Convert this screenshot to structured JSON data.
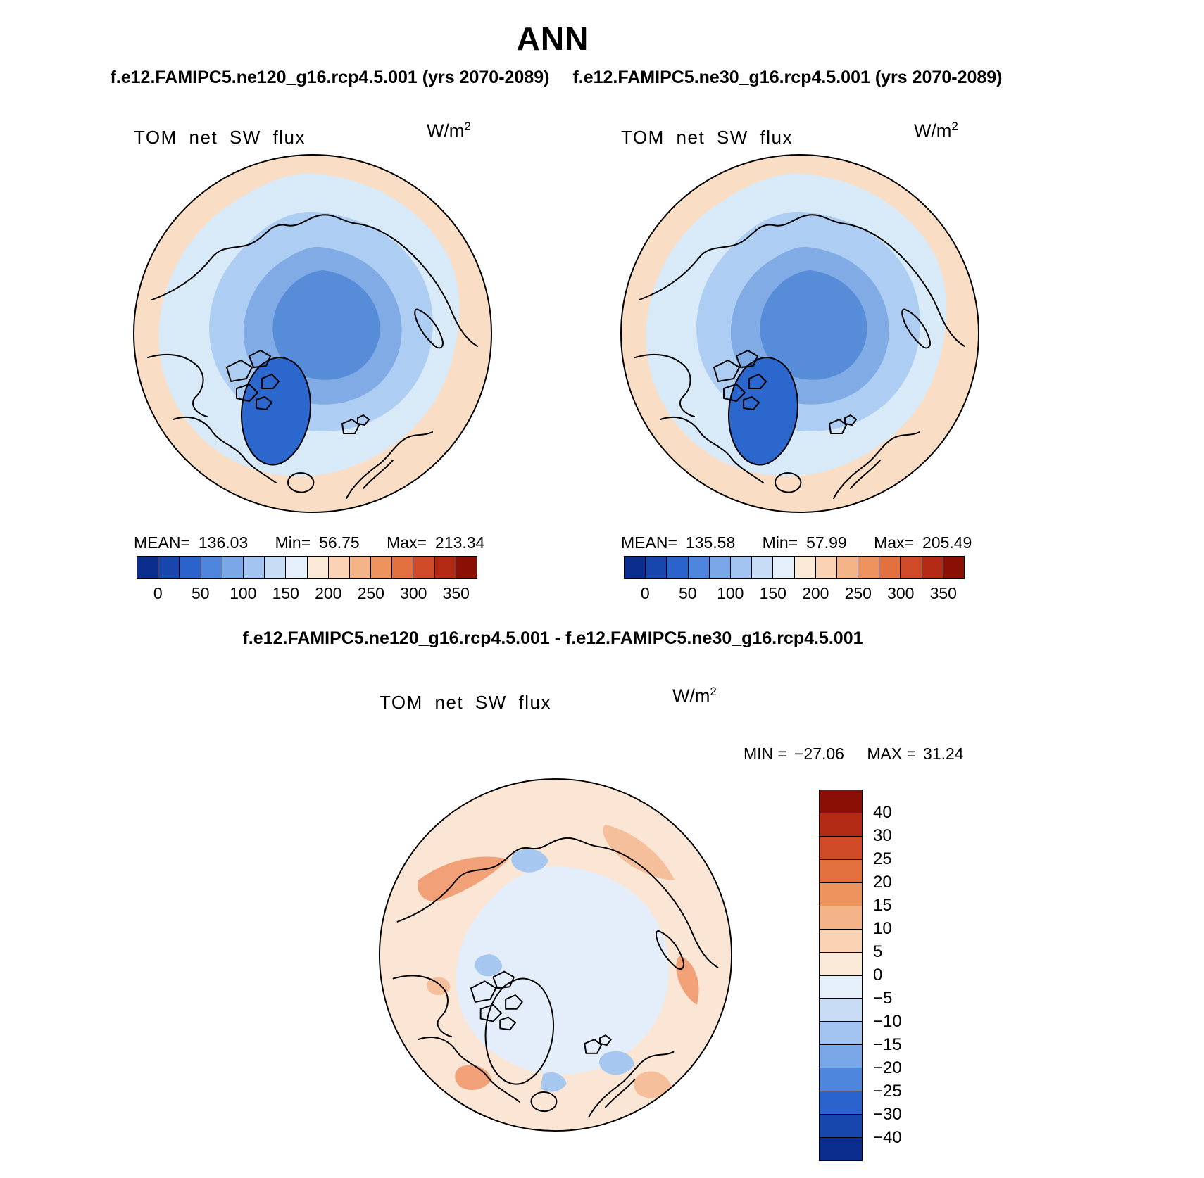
{
  "header": {
    "title": "ANN",
    "run_left": "f.e12.FAMIPC5.ne120_g16.rcp4.5.001 (yrs 2070-2089)",
    "run_right": "f.e12.FAMIPC5.ne30_g16.rcp4.5.001 (yrs 2070-2089)"
  },
  "diff": {
    "title": "f.e12.FAMIPC5.ne120_g16.rcp4.5.001 - f.e12.FAMIPC5.ne30_g16.rcp4.5.001"
  },
  "panels": [
    {
      "field_label": "TOM net SW flux",
      "units_base": "W/m",
      "units_exp": "2",
      "stats": {
        "mean_label": "MEAN=",
        "mean": "136.03",
        "min_label": "Min=",
        "min": "56.75",
        "max_label": "Max=",
        "max": "213.34"
      },
      "colorbar": {
        "ticks": [
          "0",
          "50",
          "100",
          "150",
          "200",
          "250",
          "300",
          "350"
        ],
        "colors": [
          "#0a2c8d",
          "#1746ad",
          "#2b63cc",
          "#4e86dd",
          "#79a7e8",
          "#a3c3f0",
          "#c8dcf6",
          "#e6f0fb",
          "#fcead9",
          "#f9d3b4",
          "#f5b488",
          "#ee935e",
          "#e2713f",
          "#cf4a26",
          "#b32a14",
          "#8a1005"
        ]
      }
    },
    {
      "field_label": "TOM net SW flux",
      "units_base": "W/m",
      "units_exp": "2",
      "stats": {
        "mean_label": "MEAN=",
        "mean": "135.58",
        "min_label": "Min=",
        "min": "57.99",
        "max_label": "Max=",
        "max": "205.49"
      },
      "colorbar": {
        "ticks": [
          "0",
          "50",
          "100",
          "150",
          "200",
          "250",
          "300",
          "350"
        ],
        "colors": [
          "#0a2c8d",
          "#1746ad",
          "#2b63cc",
          "#4e86dd",
          "#79a7e8",
          "#a3c3f0",
          "#c8dcf6",
          "#e6f0fb",
          "#fcead9",
          "#f9d3b4",
          "#f5b488",
          "#ee935e",
          "#e2713f",
          "#cf4a26",
          "#b32a14",
          "#8a1005"
        ]
      }
    },
    {
      "field_label": "TOM net SW flux",
      "units_base": "W/m",
      "units_exp": "2",
      "minmax": {
        "min_label": "MIN =",
        "min": "−27.06",
        "max_label": "MAX =",
        "max": "31.24"
      },
      "colorbar": {
        "labels": [
          "40",
          "30",
          "25",
          "20",
          "15",
          "10",
          "5",
          "0",
          "−5",
          "−10",
          "−15",
          "−20",
          "−25",
          "−30",
          "−40"
        ],
        "colors": [
          "#8a1005",
          "#b32a14",
          "#cf4a26",
          "#e2713f",
          "#ee935e",
          "#f5b488",
          "#f9d3b4",
          "#fcead9",
          "#e6f0fb",
          "#c8dcf6",
          "#a3c3f0",
          "#79a7e8",
          "#4e86dd",
          "#2b63cc",
          "#1746ad",
          "#0a2c8d"
        ]
      }
    }
  ],
  "chart_data": [
    {
      "type": "heatmap",
      "variable": "TOM net SW flux",
      "season": "ANN",
      "model_run": "f.e12.FAMIPC5.ne120_g16.rcp4.5.001",
      "years": "2070-2089",
      "projection": "north-polar-stereographic",
      "units": "W/m^2",
      "mean": 136.03,
      "min": 56.75,
      "max": 213.34,
      "colorbar_ticks": [
        0,
        50,
        100,
        150,
        200,
        250,
        300,
        350
      ],
      "palette": [
        "#0a2c8d",
        "#1746ad",
        "#2b63cc",
        "#4e86dd",
        "#79a7e8",
        "#a3c3f0",
        "#c8dcf6",
        "#e6f0fb",
        "#fcead9",
        "#f9d3b4",
        "#f5b488",
        "#ee935e",
        "#e2713f",
        "#cf4a26",
        "#b32a14",
        "#8a1005"
      ]
    },
    {
      "type": "heatmap",
      "variable": "TOM net SW flux",
      "season": "ANN",
      "model_run": "f.e12.FAMIPC5.ne30_g16.rcp4.5.001",
      "years": "2070-2089",
      "projection": "north-polar-stereographic",
      "units": "W/m^2",
      "mean": 135.58,
      "min": 57.99,
      "max": 205.49,
      "colorbar_ticks": [
        0,
        50,
        100,
        150,
        200,
        250,
        300,
        350
      ],
      "palette": [
        "#0a2c8d",
        "#1746ad",
        "#2b63cc",
        "#4e86dd",
        "#79a7e8",
        "#a3c3f0",
        "#c8dcf6",
        "#e6f0fb",
        "#fcead9",
        "#f9d3b4",
        "#f5b488",
        "#ee935e",
        "#e2713f",
        "#cf4a26",
        "#b32a14",
        "#8a1005"
      ]
    },
    {
      "type": "heatmap",
      "variable": "TOM net SW flux",
      "season": "ANN",
      "model_run": "f.e12.FAMIPC5.ne120_g16.rcp4.5.001 - f.e12.FAMIPC5.ne30_g16.rcp4.5.001",
      "projection": "north-polar-stereographic",
      "units": "W/m^2",
      "min": -27.06,
      "max": 31.24,
      "colorbar_levels": [
        40,
        30,
        25,
        20,
        15,
        10,
        5,
        0,
        -5,
        -10,
        -15,
        -20,
        -25,
        -30,
        -40
      ],
      "palette": [
        "#8a1005",
        "#b32a14",
        "#cf4a26",
        "#e2713f",
        "#ee935e",
        "#f5b488",
        "#f9d3b4",
        "#fcead9",
        "#e6f0fb",
        "#c8dcf6",
        "#a3c3f0",
        "#79a7e8",
        "#4e86dd",
        "#2b63cc",
        "#1746ad",
        "#0a2c8d"
      ]
    }
  ]
}
